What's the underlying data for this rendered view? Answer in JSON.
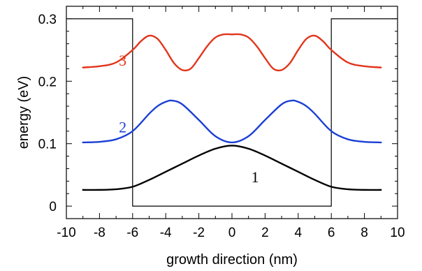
{
  "chart_data": {
    "type": "line",
    "xlabel": "growth direction (nm)",
    "ylabel": "energy (eV)",
    "xlim": [
      -10,
      10
    ],
    "ylim": [
      -0.02,
      0.32
    ],
    "x_ticks": [
      -10,
      -8,
      -6,
      -4,
      -2,
      0,
      2,
      4,
      6,
      8,
      10
    ],
    "x_tick_labels": [
      "-10",
      "-8",
      "-6",
      "-4",
      "-2",
      "0",
      "2",
      "4",
      "6",
      "8",
      "10"
    ],
    "y_ticks": [
      0,
      0.1,
      0.2,
      0.3
    ],
    "y_tick_labels": [
      "0",
      "0.1",
      "0.2",
      "0.3"
    ],
    "grid": false,
    "potential": {
      "x": [
        -10,
        -6,
        -6,
        6,
        6,
        10
      ],
      "y": [
        0.3,
        0.3,
        0,
        0,
        0.3,
        0.3
      ],
      "color": "#000000"
    },
    "series": [
      {
        "label": "1",
        "color": "#000000",
        "x": [
          -9,
          -8,
          -7,
          -6,
          -5,
          -4,
          -3,
          -2,
          -1,
          0,
          1,
          2,
          3,
          4,
          5,
          6,
          7,
          8,
          9
        ],
        "y": [
          0.026,
          0.026,
          0.027,
          0.031,
          0.042,
          0.055,
          0.068,
          0.081,
          0.092,
          0.097,
          0.092,
          0.081,
          0.068,
          0.055,
          0.042,
          0.031,
          0.027,
          0.026,
          0.026
        ]
      },
      {
        "label": "2",
        "color": "#1a3fd6",
        "x": [
          -9,
          -8,
          -7,
          -6,
          -5,
          -4.5,
          -4,
          -3.6,
          -3,
          -2,
          -1,
          0,
          1,
          2,
          3,
          3.6,
          4,
          4.5,
          5,
          6,
          7,
          8,
          9
        ],
        "y": [
          0.102,
          0.103,
          0.107,
          0.12,
          0.148,
          0.16,
          0.167,
          0.169,
          0.163,
          0.138,
          0.112,
          0.102,
          0.112,
          0.138,
          0.163,
          0.169,
          0.167,
          0.16,
          0.148,
          0.12,
          0.107,
          0.103,
          0.102
        ]
      },
      {
        "label": "3",
        "color": "#e2351c",
        "x": [
          -9,
          -8,
          -7,
          -6,
          -5.5,
          -5,
          -4.5,
          -4,
          -3.5,
          -3,
          -2.5,
          -2,
          -1.5,
          -1,
          -0.5,
          0,
          0.5,
          1,
          1.5,
          2,
          2.5,
          3,
          3.5,
          4,
          4.5,
          5,
          5.5,
          6,
          7,
          8,
          9
        ],
        "y": [
          0.222,
          0.224,
          0.23,
          0.25,
          0.264,
          0.273,
          0.268,
          0.25,
          0.229,
          0.218,
          0.22,
          0.237,
          0.256,
          0.27,
          0.275,
          0.275,
          0.275,
          0.27,
          0.256,
          0.237,
          0.22,
          0.218,
          0.229,
          0.25,
          0.268,
          0.273,
          0.264,
          0.25,
          0.23,
          0.224,
          0.222
        ]
      }
    ],
    "annotations": [
      {
        "text": "1",
        "x": 1.4,
        "y": 0.038,
        "color": "#000000"
      },
      {
        "text": "2",
        "x": -6.6,
        "y": 0.118,
        "color": "#1a3fd6"
      },
      {
        "text": "3",
        "x": -6.6,
        "y": 0.225,
        "color": "#e2351c"
      }
    ]
  }
}
